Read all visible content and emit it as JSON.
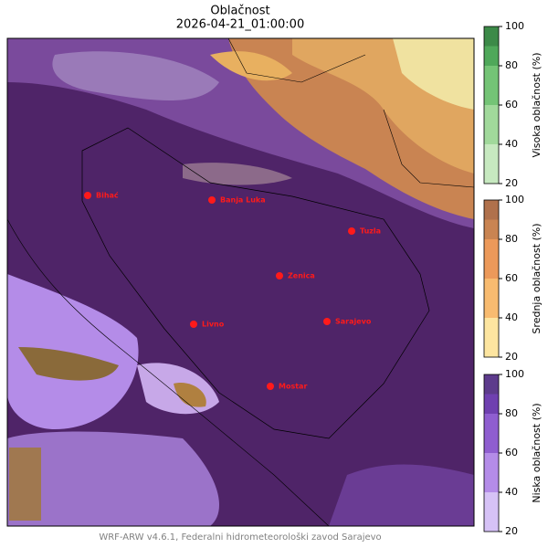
{
  "header": {
    "title": "Oblačnost",
    "subtitle": "2026-04-21_01:00:00"
  },
  "cities": [
    {
      "name": "Bihać"
    },
    {
      "name": "Banja Luka"
    },
    {
      "name": "Tuzla"
    },
    {
      "name": "Zenica"
    },
    {
      "name": "Livno"
    },
    {
      "name": "Sarajevo"
    },
    {
      "name": "Mostar"
    }
  ],
  "colorbars": [
    {
      "label": "Visoka oblačnost (%)",
      "ticks": [
        20,
        40,
        60,
        80,
        100
      ],
      "colors": [
        "#c7e9c0",
        "#a1d99b",
        "#74c476",
        "#4fa85a",
        "#3c8a48"
      ]
    },
    {
      "label": "Srednja oblačnost (%)",
      "ticks": [
        20,
        40,
        60,
        80,
        100
      ],
      "colors": [
        "#fde5a0",
        "#f8bb70",
        "#ec995a",
        "#c98452",
        "#b0714c"
      ]
    },
    {
      "label": "Niska oblačnost (%)",
      "ticks": [
        20,
        40,
        60,
        80,
        100
      ],
      "colors": [
        "#d6c2f6",
        "#b48ce8",
        "#8f5ed0",
        "#6f40b0",
        "#5d3b8c"
      ]
    }
  ],
  "footer": "WRF-ARW v4.6.1, Federalni hidrometeorološki zavod Sarajevo"
}
